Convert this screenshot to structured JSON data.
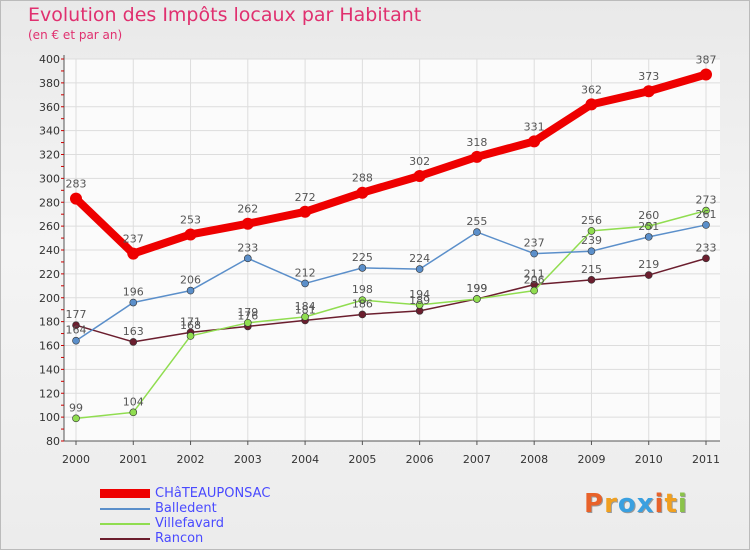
{
  "header": {
    "title": "Evolution des Impôts locaux par Habitant",
    "subtitle": "(en € et par an)"
  },
  "logo": {
    "letters": [
      "P",
      "r",
      "o",
      "x",
      "i",
      "t",
      "i"
    ],
    "colors": [
      "#e8622a",
      "#f0a020",
      "#3aa0e0",
      "#3aa0e0",
      "#e8622a",
      "#f0a020",
      "#8bc34a"
    ]
  },
  "chart_data": {
    "type": "line",
    "title": "Evolution des Impôts locaux par Habitant",
    "subtitle": "(en € et par an)",
    "xlabel": "",
    "ylabel": "",
    "x": [
      "2000",
      "2001",
      "2002",
      "2003",
      "2004",
      "2005",
      "2006",
      "2007",
      "2008",
      "2009",
      "2010",
      "2011"
    ],
    "ylim": [
      80,
      400
    ],
    "yticks": [
      80,
      100,
      120,
      140,
      160,
      180,
      200,
      220,
      240,
      260,
      280,
      300,
      320,
      340,
      360,
      380,
      400
    ],
    "grid": true,
    "legend_position": "bottom-left",
    "series": [
      {
        "name": "CHâTEAUPONSAC",
        "color": "#ee0000",
        "values": [
          283,
          237,
          253,
          262,
          272,
          288,
          302,
          318,
          331,
          362,
          373,
          387
        ]
      },
      {
        "name": "Balledent",
        "color": "#5b8fca",
        "values": [
          164,
          196,
          206,
          233,
          212,
          225,
          224,
          255,
          237,
          239,
          251,
          261
        ]
      },
      {
        "name": "Villefavard",
        "color": "#90dd50",
        "values": [
          99,
          104,
          168,
          179,
          184,
          198,
          194,
          199,
          206,
          256,
          260,
          273
        ]
      },
      {
        "name": "Rancon",
        "color": "#6b1e2e",
        "values": [
          177,
          163,
          171,
          176,
          181,
          186,
          189,
          199,
          211,
          215,
          219,
          233
        ]
      }
    ]
  }
}
